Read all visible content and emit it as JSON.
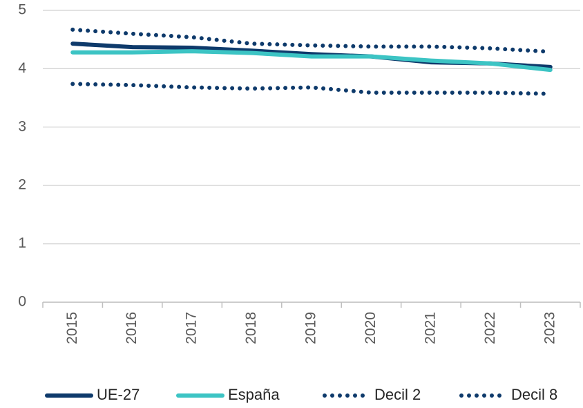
{
  "chart_data": {
    "type": "line",
    "categories": [
      "2015",
      "2016",
      "2017",
      "2018",
      "2019",
      "2020",
      "2021",
      "2022",
      "2023"
    ],
    "series": [
      {
        "name": "UE-27",
        "color": "#0e3a6b",
        "style": "solid",
        "values": [
          4.43,
          4.37,
          4.36,
          4.31,
          4.25,
          4.21,
          4.11,
          4.09,
          4.03
        ]
      },
      {
        "name": "España",
        "color": "#3cc4c4",
        "style": "solid",
        "values": [
          4.28,
          4.28,
          4.3,
          4.27,
          4.21,
          4.21,
          4.14,
          4.09,
          3.98
        ]
      },
      {
        "name": "Decil 2",
        "color": "#0e3a6b",
        "style": "dotted",
        "values": [
          3.74,
          3.72,
          3.68,
          3.66,
          3.68,
          3.59,
          3.59,
          3.59,
          3.57
        ]
      },
      {
        "name": "Decil 8",
        "color": "#0e3a6b",
        "style": "dotted",
        "values": [
          4.67,
          4.6,
          4.54,
          4.43,
          4.4,
          4.38,
          4.38,
          4.35,
          4.29
        ]
      }
    ],
    "ylim": [
      0,
      5
    ],
    "yticks": [
      0,
      1,
      2,
      3,
      4,
      5
    ],
    "grid": true,
    "legend": "bottom"
  }
}
